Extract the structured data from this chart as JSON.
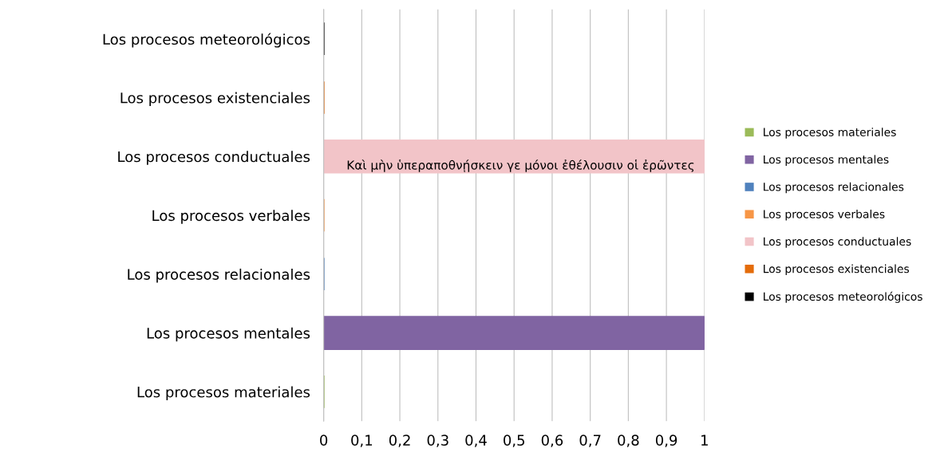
{
  "chart_data": {
    "type": "bar",
    "orientation": "horizontal",
    "categories": [
      "Los procesos meteorológicos",
      "Los procesos existenciales",
      "Los procesos conductuales",
      "Los procesos verbales",
      "Los procesos relacionales",
      "Los procesos mentales",
      "Los procesos materiales"
    ],
    "series": [
      {
        "name": "Los procesos materiales",
        "color": "#9bbb59",
        "values": [
          null,
          null,
          null,
          null,
          null,
          null,
          0
        ]
      },
      {
        "name": "Los procesos mentales",
        "color": "#8064a2",
        "values": [
          null,
          null,
          null,
          null,
          null,
          1,
          null
        ]
      },
      {
        "name": "Los procesos relacionales",
        "color": "#4f81bd",
        "values": [
          null,
          null,
          null,
          null,
          0,
          null,
          null
        ]
      },
      {
        "name": "Los procesos verbales",
        "color": "#f79646",
        "values": [
          null,
          null,
          null,
          0,
          null,
          null,
          null
        ]
      },
      {
        "name": "Los procesos conductuales",
        "color": "#f2c4c8",
        "values": [
          null,
          null,
          1,
          null,
          null,
          null,
          null
        ]
      },
      {
        "name": "Los procesos existenciales",
        "color": "#e46c0a",
        "values": [
          null,
          0,
          null,
          null,
          null,
          null,
          null
        ]
      },
      {
        "name": "Los procesos meteorológicos",
        "color": "#000000",
        "values": [
          0,
          null,
          null,
          null,
          null,
          null,
          null
        ]
      }
    ],
    "xlim": [
      0,
      1
    ],
    "xticks": [
      0,
      {
        "value": 0.1,
        "label": "0,1"
      },
      {
        "value": 0.2,
        "label": "0,2"
      },
      {
        "value": 0.3,
        "label": "0,3"
      },
      {
        "value": 0.4,
        "label": "0,4"
      },
      {
        "value": 0.5,
        "label": "0,5"
      },
      {
        "value": 0.6,
        "label": "0,6"
      },
      {
        "value": 0.7,
        "label": "0,7"
      },
      {
        "value": 0.8,
        "label": "0,8"
      },
      {
        "value": 0.9,
        "label": "0,9"
      },
      1
    ],
    "grid": "x",
    "legend": "right",
    "annotations": [
      "Καὶ μὴν ὑπεραποθνῄσκειν γε μόνοι ἐθέλουσιν οἱ ἐρῶντες"
    ]
  }
}
